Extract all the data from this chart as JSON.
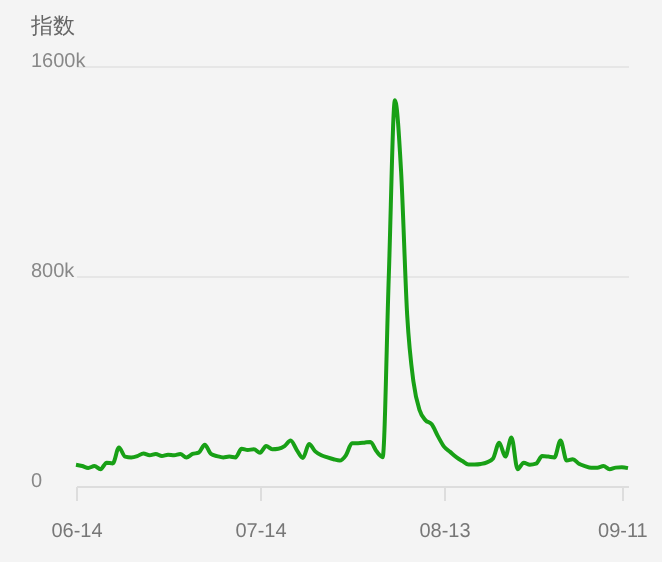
{
  "chart_data": {
    "type": "line",
    "ylabel": "指数",
    "x": [
      "--06-14",
      "--06-15",
      "--06-16",
      "--06-17",
      "--06-18",
      "--06-19",
      "--06-20",
      "--06-21",
      "--06-22",
      "--06-23",
      "--06-24",
      "--06-25",
      "--06-26",
      "--06-27",
      "--06-28",
      "--06-29",
      "--06-30",
      "--07-01",
      "--07-02",
      "--07-03",
      "--07-04",
      "--07-05",
      "--07-06",
      "--07-07",
      "--07-08",
      "--07-09",
      "--07-10",
      "--07-11",
      "--07-12",
      "--07-13",
      "--07-14",
      "--07-15",
      "--07-16",
      "--07-17",
      "--07-18",
      "--07-19",
      "--07-20",
      "--07-21",
      "--07-22",
      "--07-23",
      "--07-24",
      "--07-25",
      "--07-26",
      "--07-27",
      "--07-28",
      "--07-29",
      "--07-30",
      "--07-31",
      "--08-01",
      "--08-02",
      "--08-03",
      "--08-04",
      "--08-05",
      "--08-06",
      "--08-07",
      "--08-08",
      "--08-09",
      "--08-10",
      "--08-11",
      "--08-12",
      "--08-13",
      "--08-14",
      "--08-15",
      "--08-16",
      "--08-17",
      "--08-18",
      "--08-19",
      "--08-20",
      "--08-21",
      "--08-22",
      "--08-23",
      "--08-24",
      "--08-25",
      "--08-26",
      "--08-27",
      "--08-28",
      "--08-29",
      "--08-30",
      "--08-31",
      "--09-01",
      "--09-02",
      "--09-03",
      "--09-04",
      "--09-05",
      "--09-06",
      "--09-07",
      "--09-08",
      "--09-09",
      "--09-10",
      "--09-11",
      "--09-12"
    ],
    "series": [
      {
        "color": "#18a016",
        "values": [
          81000,
          76000,
          69000,
          76000,
          64000,
          89000,
          86000,
          147000,
          112000,
          109000,
          114000,
          124000,
          117000,
          122000,
          114000,
          119000,
          117000,
          122000,
          109000,
          122000,
          127000,
          157000,
          122000,
          114000,
          109000,
          112000,
          109000,
          142000,
          137000,
          140000,
          127000,
          152000,
          140000,
          142000,
          152000,
          173000,
          137000,
          107000,
          160000,
          132000,
          117000,
          109000,
          102000,
          97000,
          117000,
          163000,
          163000,
          165000,
          168000,
          132000,
          110000,
          800000,
          1470000,
          1200000,
          650000,
          400000,
          290000,
          250000,
          235000,
          190000,
          150000,
          130000,
          110000,
          95000,
          82000,
          82000,
          84000,
          90000,
          105000,
          165000,
          112000,
          185000,
          64000,
          89000,
          81000,
          85000,
          114000,
          112000,
          109000,
          173000,
          97000,
          102000,
          85000,
          76000,
          70000,
          70000,
          76000,
          64000,
          70000,
          71000,
          68000
        ]
      }
    ],
    "xlim": [
      "--06-14",
      "--09-12"
    ],
    "xticks": [
      {
        "value": "--06-14",
        "label": "06-14"
      },
      {
        "value": "--07-14",
        "label": "07-14"
      },
      {
        "value": "--08-13",
        "label": "08-13"
      },
      {
        "value": "--09-11",
        "label": "09-11"
      }
    ],
    "ylim": [
      0,
      1600000
    ],
    "yticks": [
      0,
      {
        "value": 800000,
        "label": "800k"
      },
      {
        "value": 1600000,
        "label": "1600k"
      }
    ],
    "grid": "y"
  }
}
